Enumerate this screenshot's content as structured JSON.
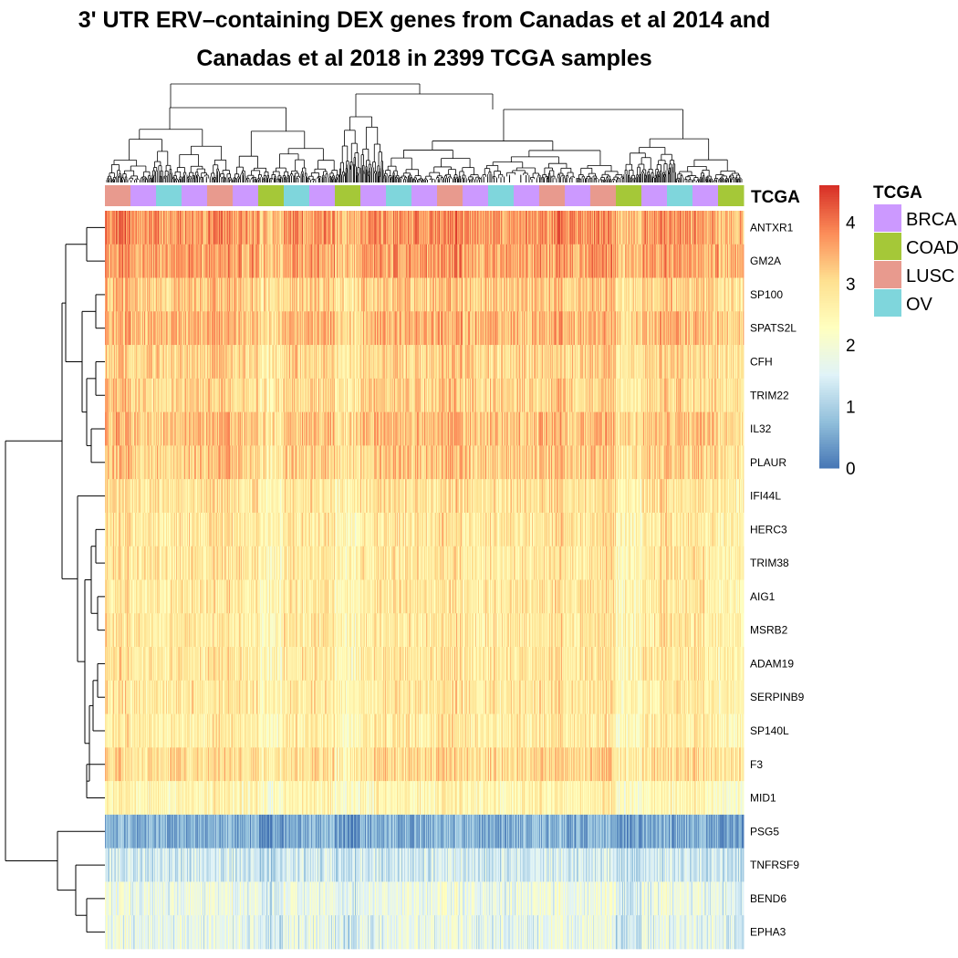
{
  "chart_data": {
    "type": "heatmap",
    "title_lines": [
      "3' UTR ERV–containing DEX genes from Canadas et al 2014 and",
      "Canadas et al 2018 in 2399 TCGA samples"
    ],
    "annotation_label": "TCGA",
    "rows": [
      "ANTXR1",
      "GM2A",
      "SP100",
      "SPATS2L",
      "CFH",
      "TRIM22",
      "IL32",
      "PLAUR",
      "IFI44L",
      "HERC3",
      "TRIM38",
      "AIG1",
      "MSRB2",
      "ADAM19",
      "SERPINB9",
      "SP140L",
      "F3",
      "MID1",
      "PSG5",
      "TNFRSF9",
      "BEND6",
      "EPHA3"
    ],
    "row_mean_values": [
      3.7,
      3.6,
      3.2,
      3.4,
      3.1,
      3.1,
      3.3,
      3.2,
      2.9,
      2.8,
      2.8,
      2.8,
      2.8,
      2.8,
      2.8,
      2.7,
      3.0,
      2.5,
      0.6,
      1.4,
      1.8,
      1.7
    ],
    "sample_group_order": [
      "LUSC",
      "BRCA",
      "OV",
      "BRCA",
      "LUSC",
      "BRCA",
      "COAD",
      "OV",
      "BRCA",
      "COAD",
      "BRCA",
      "OV",
      "BRCA",
      "LUSC",
      "BRCA",
      "OV",
      "BRCA",
      "LUSC",
      "BRCA",
      "LUSC",
      "COAD",
      "BRCA",
      "OV",
      "BRCA",
      "COAD"
    ],
    "colorbar": {
      "ticks": [
        "4",
        "3",
        "2",
        "1",
        "0"
      ],
      "tick_values": [
        4,
        3,
        2,
        1,
        0
      ],
      "range": [
        0,
        4.6
      ],
      "colors": [
        "#4575b4",
        "#91bfdb",
        "#e0f3f8",
        "#ffffbf",
        "#fee090",
        "#fc8d59",
        "#d73027"
      ]
    },
    "legend": {
      "title": "TCGA",
      "items": [
        {
          "label": "BRCA",
          "color": "#cc99ff"
        },
        {
          "label": "COAD",
          "color": "#a5c838"
        },
        {
          "label": "LUSC",
          "color": "#e89a8e"
        },
        {
          "label": "OV",
          "color": "#7fd6dc"
        }
      ]
    },
    "n_samples_shown": 2399
  }
}
